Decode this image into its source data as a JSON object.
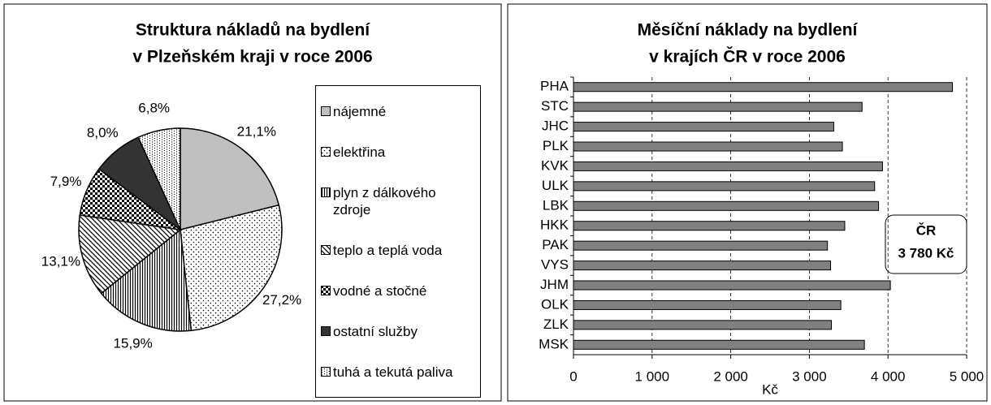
{
  "chart_data": [
    {
      "type": "pie",
      "title": [
        "Struktura nákladů na bydlení",
        "v Plzeňském kraji v roce 2006"
      ],
      "categories": [
        "nájemné",
        "elektřina",
        "plyn z dálkového zdroje",
        "teplo a teplá voda",
        "vodné a stočné",
        "ostatní služby",
        "tuhá a tekutá paliva"
      ],
      "values": [
        21.1,
        27.2,
        15.9,
        13.1,
        7.9,
        8.0,
        6.8
      ],
      "value_labels": [
        "21,1%",
        "27,2%",
        "15,9%",
        "13,1%",
        "7,9%",
        "8,0%",
        "6,8%"
      ],
      "colors": [
        "#c0c0c0",
        "#ffffff",
        "#ffffff",
        "#ffffff",
        "#ffffff",
        "#333333",
        "#ffffff"
      ],
      "legend": "right"
    },
    {
      "type": "barh",
      "title": [
        "Měsíční náklady na bydlení",
        "v krajích ČR v roce 2006"
      ],
      "categories": [
        "PHA",
        "STC",
        "JHC",
        "PLK",
        "KVK",
        "ULK",
        "LBK",
        "HKK",
        "PAK",
        "VYS",
        "JHM",
        "OLK",
        "ZLK",
        "MSK"
      ],
      "values": [
        4820,
        3670,
        3310,
        3420,
        3930,
        3830,
        3880,
        3450,
        3230,
        3270,
        4030,
        3400,
        3280,
        3700
      ],
      "color": "#808080",
      "xlabel": "Kč",
      "xlim": [
        0,
        5000
      ],
      "xticks": [
        0,
        {
          "value": 1000,
          "label": "1 000"
        },
        {
          "value": 2000,
          "label": "2 000"
        },
        {
          "value": 3000,
          "label": "3 000"
        },
        {
          "value": 4000,
          "label": "4 000"
        },
        {
          "value": 5000,
          "label": "5 000"
        }
      ],
      "grid": true,
      "annotation": [
        "ČR",
        "3 780 Kč"
      ]
    }
  ]
}
